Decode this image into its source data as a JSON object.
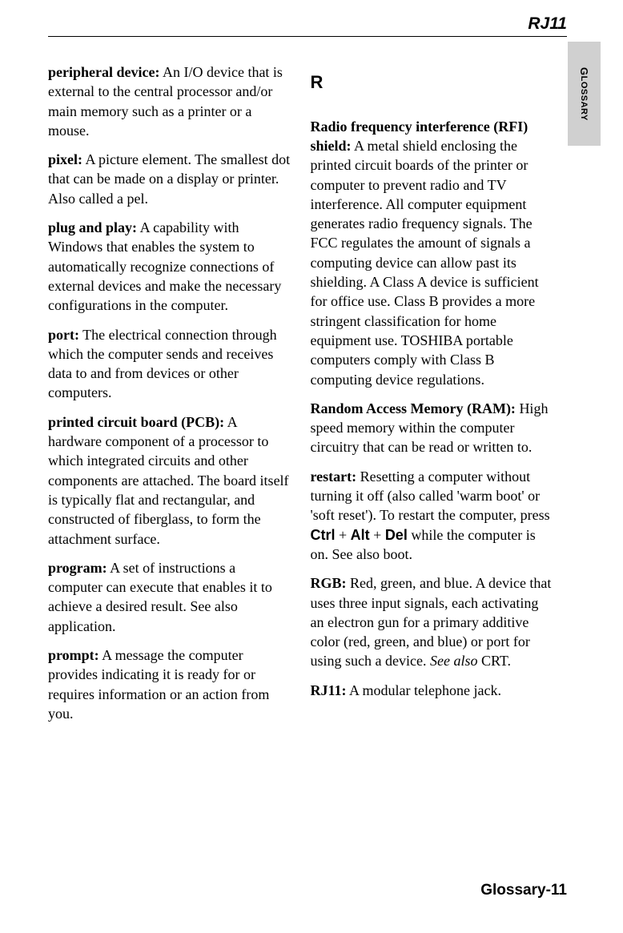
{
  "header": {
    "title": "RJ11"
  },
  "sideTab": {
    "label": "GLOSSARY"
  },
  "leftColumn": {
    "entries": [
      {
        "term": "peripheral device:",
        "def": "  An I/O device that is external to the central processor and/or main memory such as a printer or a mouse."
      },
      {
        "term": "pixel:",
        "def": "  A picture element.  The smallest dot that can be made on a display or printer.  Also called a pel."
      },
      {
        "term": "plug and play:",
        "def": "  A capability with Windows that enables the system to automatically recognize connections of external devices and make the necessary configurations in the computer."
      },
      {
        "term": "port:",
        "def": "  The electrical connection through which the computer sends and receives data to and from devices or other computers."
      },
      {
        "term": "printed circuit board (PCB):",
        "def": "  A hardware component of a processor to which integrated circuits and other components are attached.  The board itself is typically flat and rectangular, and constructed of fiberglass, to form the attachment surface."
      },
      {
        "term": "program:",
        "def": "  A set of instructions a computer can execute that enables it to achieve a desired result.  See also application."
      },
      {
        "term": "prompt:",
        "def": "  A message the computer provides indicating it is ready for or requires information or an action from you."
      }
    ]
  },
  "rightColumn": {
    "sectionLetter": "R",
    "entries": [
      {
        "term": "Radio frequency interference (RFI) shield:",
        "def": "  A metal shield enclosing the printed circuit boards of the printer or computer to prevent radio and TV interference.  All computer equipment generates radio frequency signals.  The FCC regulates the amount of signals a computing device can allow past its shielding.  A Class A device is sufficient for office use.  Class B provides a more stringent classification for home equipment use.  TOSHIBA portable computers comply with Class B computing device regulations."
      },
      {
        "term": "Random Access Memory (RAM):",
        "def": "  High speed memory within the computer circuitry that can be read or written to."
      }
    ],
    "restart": {
      "term": "restart:",
      "pre": "  Resetting a computer without turning it off (also called 'warm boot' or 'soft reset'). To restart the computer, press ",
      "k1": "Ctrl",
      "p1": " + ",
      "k2": "Alt",
      "p2": " + ",
      "k3": "Del",
      "post": " while the computer is on.  See also boot."
    },
    "rgb": {
      "term": "RGB:",
      "def": "  Red, green, and blue.  A device that uses three input signals, each activating an electron gun for a primary additive color (red, green, and blue) or port for using such a device.  ",
      "seeAlso": "See also",
      "seeAlsoTarget": " CRT."
    },
    "rj11": {
      "term": "RJ11:",
      "def": "  A modular telephone jack."
    }
  },
  "footer": {
    "pageLabel": "Glossary-11"
  }
}
